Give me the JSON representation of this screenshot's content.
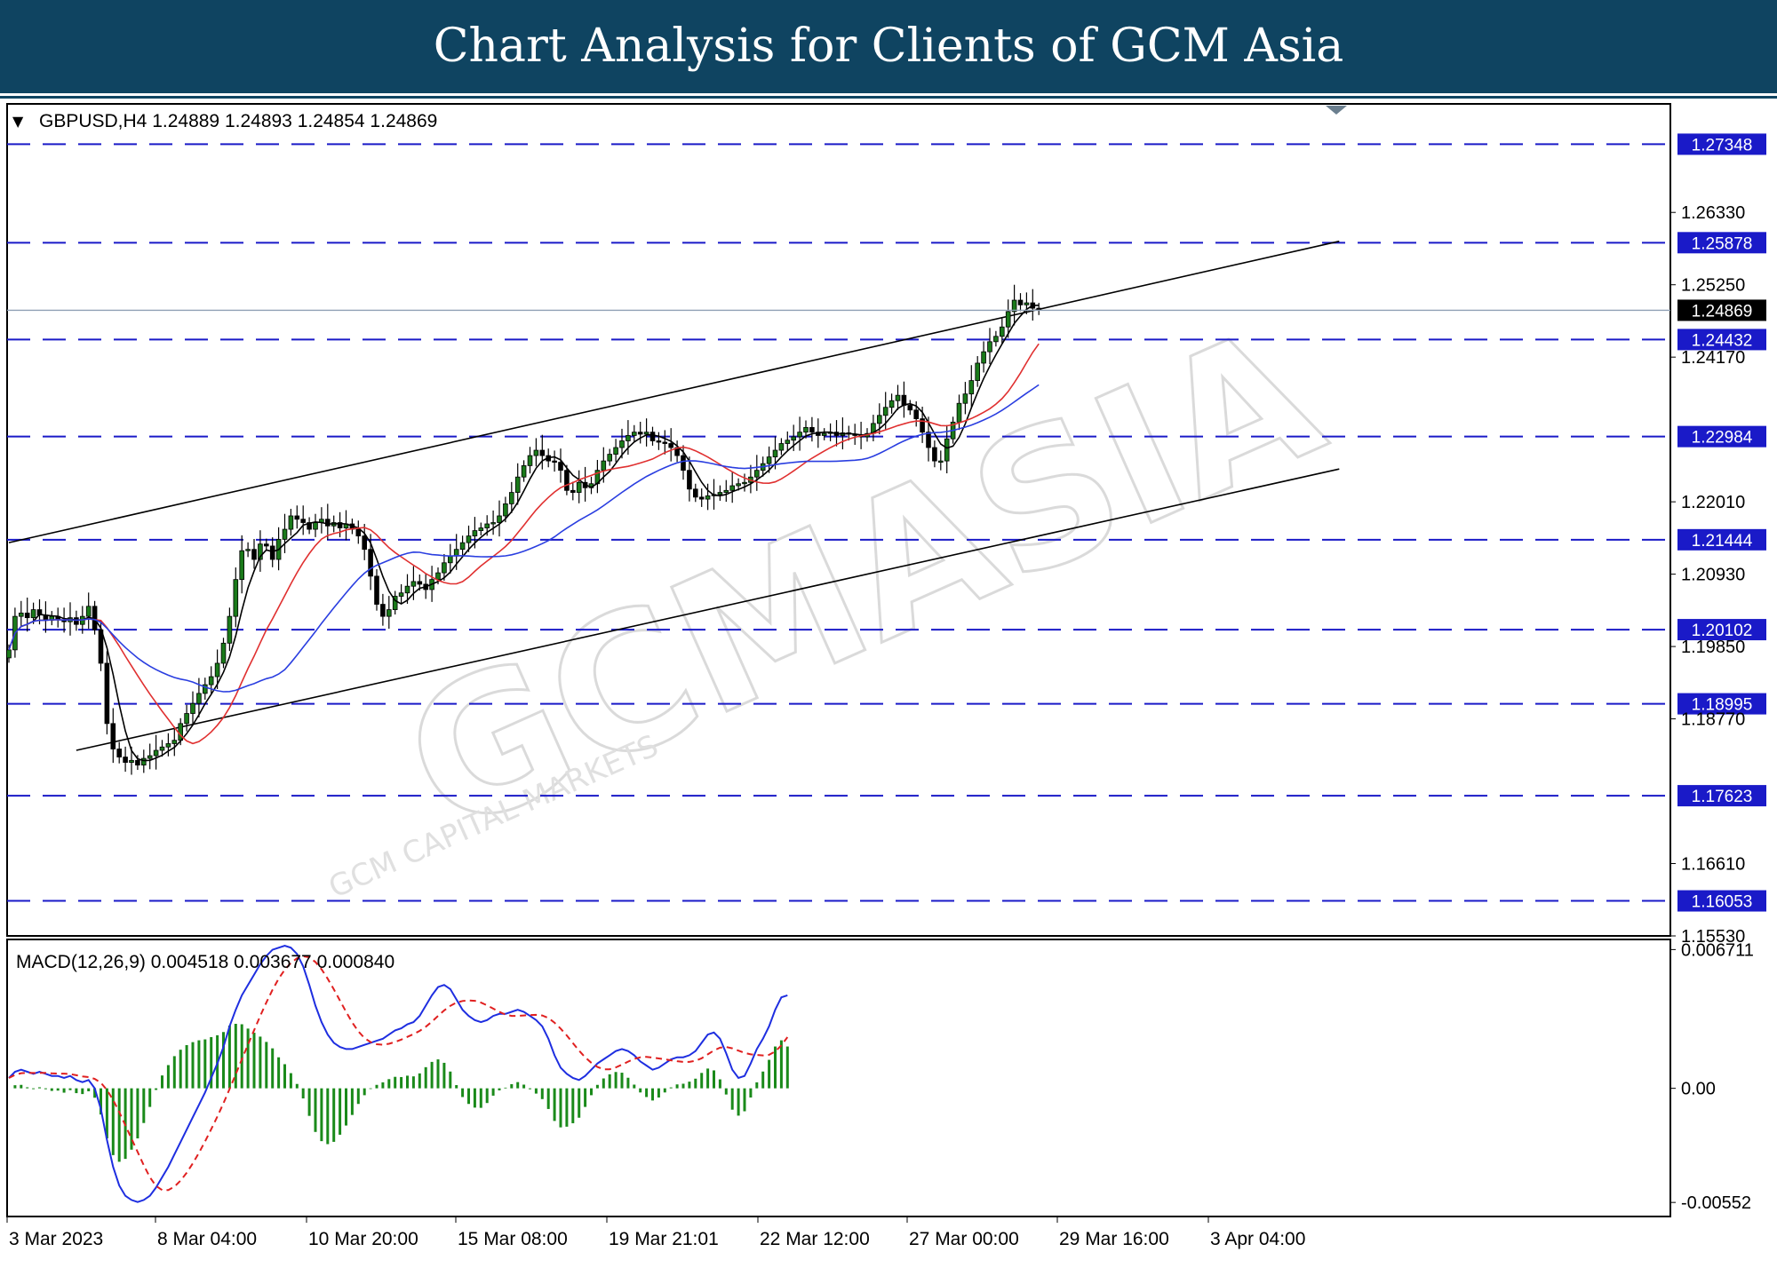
{
  "banner": {
    "title": "Chart Analysis for Clients of GCM Asia"
  },
  "watermark": {
    "brand": "GCMASIA",
    "subtitle": "GCM CAPITAL MARKETS"
  },
  "colors": {
    "banner": "#0f4461",
    "level_line": "#1a1ac8",
    "level_box": "#1a1ac8",
    "bull_candle": "#1a7a1a",
    "bear_candle": "#000000",
    "ma_fast": "#000000",
    "ma_mid": "#e03030",
    "ma_slow": "#2a3ee0",
    "macd_line": "#1e2ee0",
    "signal_line": "#e02020",
    "histogram": "#1a8a1a"
  },
  "chart_data": [
    {
      "type": "candlestick",
      "header": "GBPUSD,H4  1.24889 1.24893 1.24854 1.24869",
      "symbol": "GBPUSD",
      "timeframe": "H4",
      "ohlc_last": [
        1.24889,
        1.24893,
        1.24854,
        1.24869
      ],
      "current_price": "1.24869",
      "ylim": [
        1.1553,
        1.2795
      ],
      "y_ticks": [
        "1.26330",
        "1.25250",
        "1.24170",
        "1.22010",
        "1.20930",
        "1.19850",
        "1.18770",
        "1.16610",
        "1.15530"
      ],
      "levels": [
        "1.27348",
        "1.25878",
        "1.24432",
        "1.22984",
        "1.21444",
        "1.20102",
        "1.18995",
        "1.17623",
        "1.16053"
      ],
      "x_labels": [
        "3 Mar 2023",
        "8 Mar 04:00",
        "10 Mar 20:00",
        "15 Mar 08:00",
        "19 Mar 21:01",
        "22 Mar 12:00",
        "27 Mar 00:00",
        "29 Mar 16:00",
        "3 Apr 04:00"
      ],
      "channel": {
        "upper": [
          {
            "bar": 0,
            "price": 1.214
          },
          {
            "bar": 217,
            "price": 1.259
          }
        ],
        "lower": [
          {
            "bar": 11,
            "price": 1.183
          },
          {
            "bar": 217,
            "price": 1.225
          }
        ]
      },
      "closes": [
        1.198,
        1.203,
        1.2035,
        1.2028,
        1.204,
        1.2032,
        1.2024,
        1.203,
        1.2025,
        1.2022,
        1.2028,
        1.2018,
        1.203,
        1.2045,
        1.201,
        1.196,
        1.187,
        1.1832,
        1.182,
        1.1812,
        1.1815,
        1.1808,
        1.1818,
        1.1822,
        1.183,
        1.1835,
        1.184,
        1.1845,
        1.187,
        1.1885,
        1.19,
        1.1915,
        1.1928,
        1.194,
        1.196,
        1.199,
        1.203,
        1.2085,
        1.2128,
        1.213,
        1.2115,
        1.2138,
        1.2135,
        1.2115,
        1.2145,
        1.216,
        1.218,
        1.2175,
        1.217,
        1.216,
        1.217,
        1.2175,
        1.2165,
        1.217,
        1.2162,
        1.2168,
        1.216,
        1.215,
        1.213,
        1.209,
        1.2048,
        1.203,
        1.204,
        1.206,
        1.2065,
        1.2075,
        1.2082,
        1.2078,
        1.207,
        1.2085,
        1.2095,
        1.211,
        1.212,
        1.213,
        1.214,
        1.215,
        1.2158,
        1.2162,
        1.2168,
        1.217,
        1.218,
        1.2198,
        1.2215,
        1.2238,
        1.2255,
        1.227,
        1.2278,
        1.227,
        1.2262,
        1.226,
        1.2248,
        1.2218,
        1.2215,
        1.223,
        1.2222,
        1.2228,
        1.2248,
        1.2262,
        1.2272,
        1.2282,
        1.2292,
        1.23,
        1.2305,
        1.2302,
        1.2305,
        1.2292,
        1.229,
        1.2288,
        1.2282,
        1.227,
        1.2248,
        1.222,
        1.2208,
        1.2205,
        1.221,
        1.2212,
        1.2215,
        1.2218,
        1.2225,
        1.2228,
        1.223,
        1.2238,
        1.2248,
        1.2258,
        1.2268,
        1.2278,
        1.2288,
        1.2293,
        1.2298,
        1.2305,
        1.2312,
        1.2305,
        1.23,
        1.2303,
        1.2305,
        1.23,
        1.2304,
        1.2302,
        1.23,
        1.2298,
        1.2303,
        1.2318,
        1.233,
        1.2342,
        1.2352,
        1.236,
        1.2345,
        1.2338,
        1.2325,
        1.2305,
        1.2282,
        1.2262,
        1.2262,
        1.2295,
        1.232,
        1.2348,
        1.2362,
        1.2382,
        1.2408,
        1.2425,
        1.244,
        1.2448,
        1.2462,
        1.2485,
        1.2502,
        1.2495,
        1.2498,
        1.249,
        1.2487
      ]
    },
    {
      "type": "macd",
      "header": "MACD(12,26,9) 0.004518 0.003677 0.000840",
      "values": [
        0.004518,
        0.003677,
        0.00084
      ],
      "ylim": [
        -0.0062,
        0.0072
      ],
      "y_ticks": [
        "0.006711",
        "0.00",
        "-0.00552"
      ],
      "macd": [
        0.0005,
        0.0008,
        0.0009,
        0.0008,
        0.0007,
        0.0008,
        0.0007,
        0.0006,
        0.0006,
        0.0005,
        0.0006,
        0.0004,
        0.0003,
        0.0004,
        0.0,
        -0.001,
        -0.0025,
        -0.0038,
        -0.0047,
        -0.0052,
        -0.0054,
        -0.0055,
        -0.0054,
        -0.0052,
        -0.0048,
        -0.0043,
        -0.0038,
        -0.0032,
        -0.0026,
        -0.002,
        -0.0014,
        -0.0008,
        -0.0002,
        0.0005,
        0.0012,
        0.002,
        0.003,
        0.0038,
        0.0045,
        0.005,
        0.0055,
        0.006,
        0.0064,
        0.0067,
        0.0068,
        0.0069,
        0.0068,
        0.0065,
        0.0059,
        0.005,
        0.004,
        0.0032,
        0.0026,
        0.0022,
        0.002,
        0.0019,
        0.0019,
        0.002,
        0.0021,
        0.0022,
        0.0023,
        0.0024,
        0.0026,
        0.0028,
        0.0029,
        0.0031,
        0.0032,
        0.0035,
        0.004,
        0.0045,
        0.0049,
        0.005,
        0.0048,
        0.0043,
        0.0038,
        0.0035,
        0.0033,
        0.0032,
        0.0033,
        0.0035,
        0.0036,
        0.0036,
        0.0037,
        0.0038,
        0.0037,
        0.0035,
        0.0033,
        0.003,
        0.0024,
        0.0016,
        0.001,
        0.0007,
        0.0005,
        0.0004,
        0.0006,
        0.0009,
        0.0012,
        0.0014,
        0.0016,
        0.0018,
        0.0019,
        0.0018,
        0.0016,
        0.0013,
        0.0011,
        0.0009,
        0.001,
        0.0012,
        0.0014,
        0.0015,
        0.0015,
        0.0016,
        0.0018,
        0.0022,
        0.0026,
        0.0027,
        0.0024,
        0.0017,
        0.0009,
        0.0005,
        0.0006,
        0.0012,
        0.0019,
        0.0024,
        0.003,
        0.0038,
        0.0044,
        0.0045
      ]
    }
  ]
}
